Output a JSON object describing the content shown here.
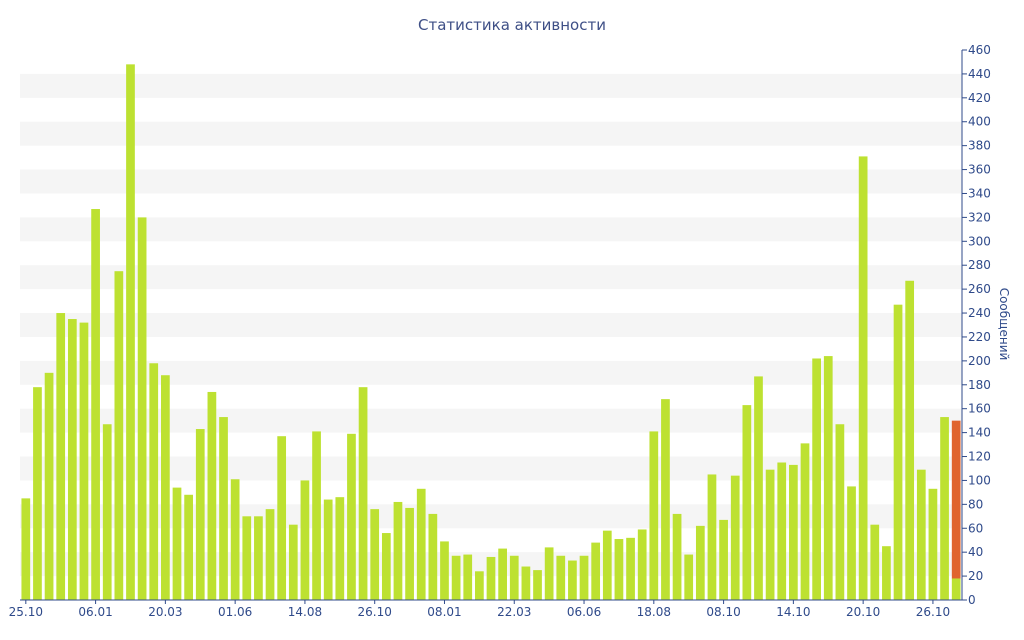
{
  "chart_data": {
    "type": "bar",
    "title": "Статистика активности",
    "ylabel": "Сообщений",
    "xlabel": "",
    "ylim": [
      0,
      460
    ],
    "y_ticks": [
      0,
      20,
      40,
      60,
      80,
      100,
      120,
      140,
      160,
      180,
      200,
      220,
      240,
      260,
      280,
      300,
      320,
      340,
      360,
      380,
      400,
      420,
      440,
      460
    ],
    "y_axis_side": "right",
    "grid": "alternating horizontal bands",
    "x_tick_labels": [
      {
        "label": "25.10",
        "index": 0
      },
      {
        "label": "06.01",
        "index": 6
      },
      {
        "label": "20.03",
        "index": 12
      },
      {
        "label": "01.06",
        "index": 18
      },
      {
        "label": "14.08",
        "index": 24
      },
      {
        "label": "26.10",
        "index": 30
      },
      {
        "label": "08.01",
        "index": 36
      },
      {
        "label": "22.03",
        "index": 42
      },
      {
        "label": "06.06",
        "index": 48
      },
      {
        "label": "18.08",
        "index": 54
      },
      {
        "label": "08.10",
        "index": 60
      },
      {
        "label": "14.10",
        "index": 66
      },
      {
        "label": "20.10",
        "index": 72
      },
      {
        "label": "26.10",
        "index": 78
      }
    ],
    "colors": {
      "bar": "#bde131",
      "highlight": "#e0642e",
      "band": "#f5f5f5",
      "text": "#2f4a8a"
    },
    "series": [
      {
        "values": [
          85,
          178,
          190,
          240,
          235,
          232,
          327,
          147,
          275,
          448,
          320,
          198,
          188,
          94,
          88,
          143,
          174,
          153,
          101,
          70,
          70,
          76,
          137,
          63,
          100,
          141,
          84,
          86,
          139,
          178,
          76,
          56,
          82,
          77,
          93,
          72,
          49,
          37,
          38,
          24,
          36,
          43,
          37,
          28,
          25,
          44,
          37,
          33,
          37,
          48,
          58,
          51,
          52,
          59,
          141,
          168,
          72,
          38,
          62,
          105,
          67,
          104,
          163,
          187,
          109,
          115,
          113,
          131,
          202,
          204,
          147,
          95,
          371,
          63,
          45,
          247,
          267,
          109,
          93,
          153,
          18
        ]
      },
      {
        "values": [
          0,
          0,
          0,
          0,
          0,
          0,
          0,
          0,
          0,
          0,
          0,
          0,
          0,
          0,
          0,
          0,
          0,
          0,
          0,
          0,
          0,
          0,
          0,
          0,
          0,
          0,
          0,
          0,
          0,
          0,
          0,
          0,
          0,
          0,
          0,
          0,
          0,
          0,
          0,
          0,
          0,
          0,
          0,
          0,
          0,
          0,
          0,
          0,
          0,
          0,
          0,
          0,
          0,
          0,
          0,
          0,
          0,
          0,
          0,
          0,
          0,
          0,
          0,
          0,
          0,
          0,
          0,
          0,
          0,
          0,
          0,
          0,
          0,
          0,
          0,
          0,
          0,
          0,
          0,
          0,
          132
        ]
      }
    ]
  }
}
